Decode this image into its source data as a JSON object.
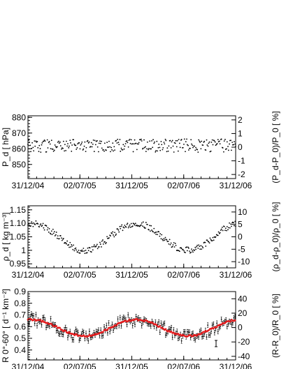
{
  "chart_data": [
    {
      "type": "scatter",
      "panel": "pressure",
      "ylabel": "P_d [ hPa]",
      "ylabel_right": "(P_d-P_0)/P_0 [ %]",
      "ylim": [
        841,
        881
      ],
      "yticks": [
        850,
        860,
        870,
        880
      ],
      "right_axis": {
        "ylim": [
          -2.3,
          2.3
        ],
        "ticks": [
          -2,
          -1,
          0,
          1,
          2
        ]
      },
      "x_ticklabels": [
        "31/12/04",
        "02/07/05",
        "31/12/05",
        "02/07/06",
        "31/12/06"
      ],
      "x_range_days": [
        0,
        730
      ],
      "baseline": 862,
      "amplitude": 0,
      "scatter": 4.2,
      "series": [
        {
          "values": []
        }
      ]
    },
    {
      "type": "scatter",
      "panel": "density",
      "ylabel": "ρ_d [ kg m⁻³]",
      "ylabel_right": "(ρ_d-ρ_0)/ρ_0 [ %]",
      "ylim": [
        0.935,
        1.165
      ],
      "yticks": [
        0.95,
        1.0,
        1.05,
        1.1,
        1.15
      ],
      "right_axis": {
        "ylim": [
          -12.5,
          12.5
        ],
        "ticks": [
          -10,
          -5,
          0,
          5,
          10
        ]
      },
      "x_ticklabels": [
        "31/12/04",
        "02/07/05",
        "31/12/05",
        "02/07/06",
        "31/12/06"
      ],
      "x_range_days": [
        0,
        730
      ],
      "baseline": 1.05,
      "amplitude": 0.05,
      "scatter": 0.012,
      "series": [
        {
          "values": []
        }
      ]
    },
    {
      "type": "scatter",
      "panel": "rate",
      "ylabel": "R 0°-60° [ d⁻¹ km⁻²]",
      "ylabel_right": "(R-R_0)/R_0 [ %]",
      "ylim": [
        0.315,
        0.9
      ],
      "yticks": [
        0.4,
        0.5,
        0.6,
        0.7,
        0.8,
        0.9
      ],
      "right_axis": {
        "ylim": [
          -45,
          50
        ],
        "ticks": [
          -40,
          -20,
          0,
          20,
          40
        ]
      },
      "x_ticklabels": [
        "31/12/04",
        "02/07/05",
        "31/12/05",
        "02/07/06",
        "31/12/06"
      ],
      "x_range_days": [
        0,
        730
      ],
      "baseline": 0.59,
      "amplitude": 0.07,
      "scatter": 0.05,
      "series": [
        {
          "values": [],
          "error_bars": true,
          "color": "#000000"
        },
        {
          "values": [],
          "color": "#e31a1c"
        }
      ]
    }
  ],
  "colors": {
    "data": "#000000",
    "fit": "#e31a1c"
  }
}
